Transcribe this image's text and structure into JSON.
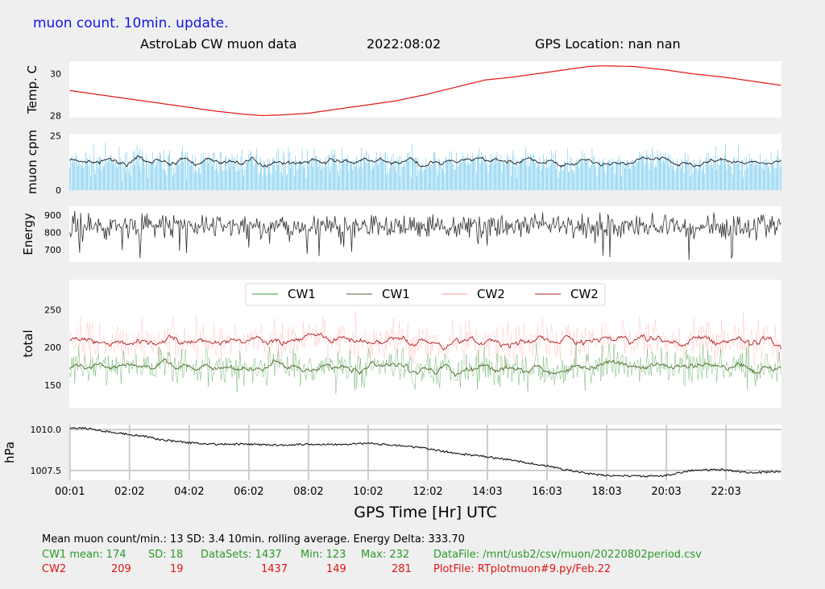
{
  "header": {
    "update_note": "muon count.  10min. update.",
    "title": "AstroLab CW muon data",
    "date": "2022:08:02",
    "gps_location": "GPS Location: nan   nan",
    "update_note_color": "#1414e6"
  },
  "footer": {
    "line1": "Mean muon count/min.: 13  SD: 3.4   10min. rolling average.    Energy Delta:  333.70",
    "cw1": {
      "label": "CW1 mean: 174",
      "sd": "SD: 18",
      "datasets": "DataSets: 1437",
      "min": "Min: 123",
      "max": "Max: 232",
      "file": "DataFile: /mnt/usb2/csv/muon/20220802period.csv",
      "color": "#2a9a2a"
    },
    "cw2": {
      "label": "CW2",
      "mean": "209",
      "sd": "19",
      "datasets": "1437",
      "min": "149",
      "max": "281",
      "file": "PlotFile: RTplotmuon#9.py/Feb.22",
      "color": "#e01414"
    }
  },
  "chart_data": [
    {
      "type": "line",
      "ylabel": "Temp. C",
      "yticks": [
        28,
        30
      ],
      "ylim": [
        27.9,
        30.6
      ],
      "series": [
        {
          "values": [
            [
              0.02,
              29.2
            ],
            [
              1.0,
              29.0
            ],
            [
              2.0,
              28.8
            ],
            [
              3.0,
              28.6
            ],
            [
              4.0,
              28.4
            ],
            [
              5.0,
              28.2
            ],
            [
              6.0,
              28.05
            ],
            [
              6.5,
              28.0
            ],
            [
              7.0,
              28.02
            ],
            [
              8.0,
              28.1
            ],
            [
              9.0,
              28.3
            ],
            [
              10.0,
              28.5
            ],
            [
              11.0,
              28.7
            ],
            [
              12.0,
              29.0
            ],
            [
              13.0,
              29.35
            ],
            [
              14.0,
              29.7
            ],
            [
              15.0,
              29.85
            ],
            [
              16.0,
              30.05
            ],
            [
              17.0,
              30.25
            ],
            [
              17.5,
              30.35
            ],
            [
              18.0,
              30.38
            ],
            [
              19.0,
              30.35
            ],
            [
              20.0,
              30.2
            ],
            [
              21.0,
              30.0
            ],
            [
              22.0,
              29.85
            ],
            [
              23.0,
              29.65
            ],
            [
              23.98,
              29.45
            ]
          ],
          "color": "#e01414"
        }
      ]
    },
    {
      "type": "bar",
      "ylabel": "muon cpm",
      "yticks": [
        0,
        25
      ],
      "ylim": [
        0,
        26
      ],
      "mean": 13,
      "sd": 3.4,
      "count": 1437,
      "series": [
        {
          "role": "counts",
          "color": "#5bc0eb"
        },
        {
          "role": "rolling-average",
          "color": "#000000"
        }
      ]
    },
    {
      "type": "line",
      "ylabel": "Energy",
      "yticks": [
        700,
        800,
        900
      ],
      "ylim": [
        630,
        950
      ],
      "series": [
        {
          "color": "#333333"
        }
      ]
    },
    {
      "type": "line",
      "ylabel": "total",
      "yticks": [
        150,
        200,
        250
      ],
      "ylim": [
        120,
        290
      ],
      "legend": {
        "position": "top-center",
        "entries": [
          "CW1",
          "CW1",
          "CW2",
          "CW2"
        ]
      },
      "series": [
        {
          "name": "CW1",
          "role": "raw",
          "color": "#3a9a3a",
          "mean": 174,
          "sd": 18,
          "min": 123,
          "max": 232
        },
        {
          "name": "CW1",
          "role": "rolling-average",
          "color": "#4e6b2a"
        },
        {
          "name": "CW2",
          "role": "raw",
          "color": "#ff9a9a",
          "mean": 209,
          "sd": 19,
          "min": 149,
          "max": 281
        },
        {
          "name": "CW2",
          "role": "rolling-average",
          "color": "#b02020"
        }
      ]
    },
    {
      "type": "line",
      "ylabel": "hPa",
      "yticks": [
        1007.5,
        1010.0
      ],
      "ytick_labels": [
        "1007.5",
        "1010.0"
      ],
      "ylim": [
        1006.9,
        1010.3
      ],
      "grid": true,
      "xlabel": "GPS Time  [Hr] UTC",
      "xticks": [
        "00:01",
        "02:02",
        "04:02",
        "06:02",
        "08:02",
        "10:02",
        "12:02",
        "14:03",
        "16:03",
        "18:03",
        "20:03",
        "22:03"
      ],
      "series": [
        {
          "values": [
            [
              0.02,
              1010.1
            ],
            [
              0.5,
              1010.1
            ],
            [
              1.0,
              1009.95
            ],
            [
              2.0,
              1009.7
            ],
            [
              2.5,
              1009.6
            ],
            [
              3.0,
              1009.4
            ],
            [
              4.0,
              1009.2
            ],
            [
              5.0,
              1009.1
            ],
            [
              6.0,
              1009.1
            ],
            [
              7.0,
              1009.05
            ],
            [
              8.0,
              1009.1
            ],
            [
              9.0,
              1009.1
            ],
            [
              10.0,
              1009.15
            ],
            [
              11.0,
              1009.05
            ],
            [
              12.0,
              1008.85
            ],
            [
              13.0,
              1008.55
            ],
            [
              14.0,
              1008.35
            ],
            [
              15.0,
              1008.1
            ],
            [
              16.0,
              1007.8
            ],
            [
              17.0,
              1007.45
            ],
            [
              17.5,
              1007.3
            ],
            [
              18.0,
              1007.2
            ],
            [
              19.0,
              1007.15
            ],
            [
              20.0,
              1007.15
            ],
            [
              20.5,
              1007.35
            ],
            [
              21.0,
              1007.5
            ],
            [
              22.0,
              1007.55
            ],
            [
              23.0,
              1007.35
            ],
            [
              23.98,
              1007.45
            ]
          ],
          "color": "#111111"
        }
      ]
    }
  ]
}
